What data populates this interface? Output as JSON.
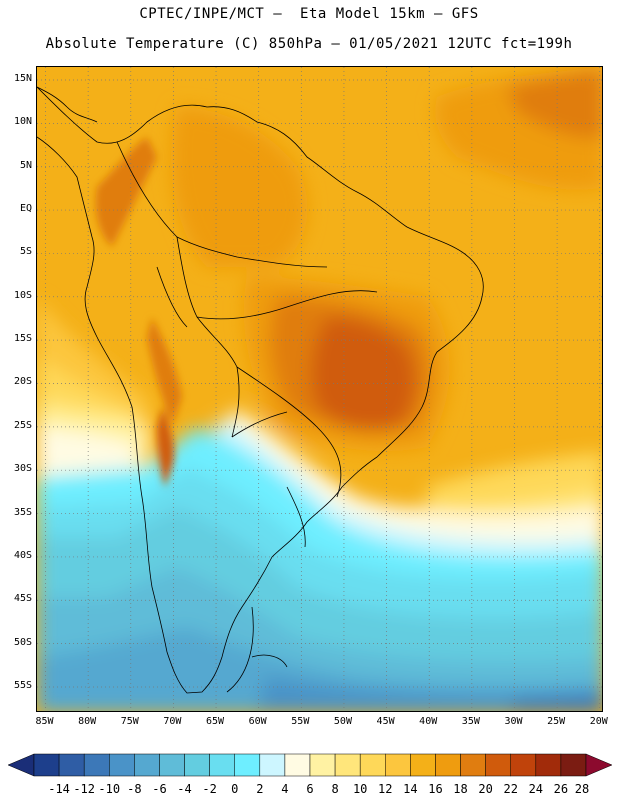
{
  "header": {
    "line1": "CPTEC/INPE/MCT –  Eta Model 15km – GFS",
    "line2": "Absolute Temperature (C) 850hPa – 01/05/2021 12UTC fct=199h"
  },
  "map": {
    "lat_labels": [
      "15N",
      "10N",
      "5N",
      "EQ",
      "5S",
      "10S",
      "15S",
      "20S",
      "25S",
      "30S",
      "35S",
      "40S",
      "45S",
      "50S",
      "55S"
    ],
    "lat_values": [
      15,
      10,
      5,
      0,
      -5,
      -10,
      -15,
      -20,
      -25,
      -30,
      -35,
      -40,
      -45,
      -50,
      -55
    ],
    "lon_labels": [
      "85W",
      "80W",
      "75W",
      "70W",
      "65W",
      "60W",
      "55W",
      "50W",
      "45W",
      "40W",
      "35W",
      "30W",
      "25W",
      "20W"
    ],
    "lon_values": [
      -85,
      -80,
      -75,
      -70,
      -65,
      -60,
      -55,
      -50,
      -45,
      -40,
      -35,
      -30,
      -25,
      -20
    ],
    "lon_range": [
      -86,
      -19.5
    ],
    "lat_range": [
      16.5,
      -58
    ]
  },
  "colorbar": {
    "labels": [
      "-14",
      "-12",
      "-10",
      "-8",
      "-6",
      "-4",
      "-2",
      "0",
      "2",
      "4",
      "6",
      "8",
      "10",
      "12",
      "14",
      "16",
      "18",
      "20",
      "22",
      "24",
      "26",
      "28"
    ],
    "colors": [
      "#1d3f8c",
      "#2f5da5",
      "#3c78b8",
      "#4a93c8",
      "#55a8d0",
      "#5fbcd8",
      "#63cde0",
      "#69def0",
      "#6eeeff",
      "#cdf6ff",
      "#fffbe3",
      "#fff2a3",
      "#ffe67b",
      "#fed859",
      "#fcc63e",
      "#f4b018",
      "#ef9c0f",
      "#e07d10",
      "#d05b0c",
      "#c0430b",
      "#a12b0a",
      "#7b1c12"
    ]
  }
}
